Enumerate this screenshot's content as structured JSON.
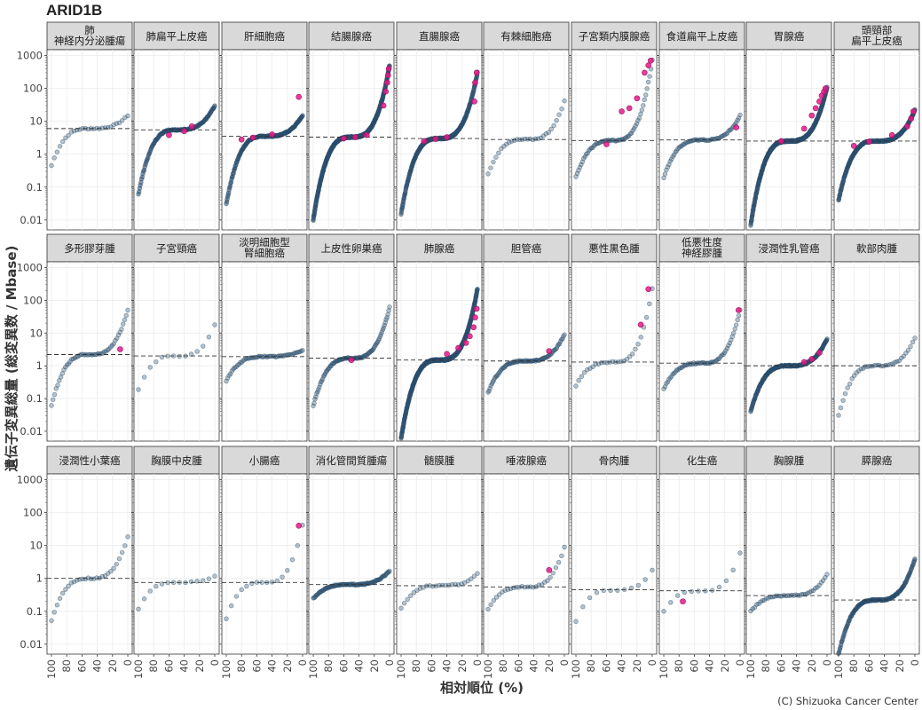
{
  "chart_data": {
    "type": "scatter",
    "title": "ARID1B",
    "xlabel": "相対順位 (%)",
    "ylabel": "遺伝子変異総量 (総変異数 / Mbase)",
    "credit": "(C) Shizuoka Cancer Center",
    "x_ticks": [
      "100",
      "80",
      "60",
      "40",
      "20",
      "0"
    ],
    "y_ticks": [
      "0.01",
      "0.1",
      "1",
      "10",
      "100",
      "1000"
    ],
    "xlim": [
      100,
      0
    ],
    "ylim": [
      0.005,
      1500
    ],
    "y_scale": "log",
    "dashed_line": "median",
    "colors": {
      "normal": "#2c4f6e",
      "mutated": "#e41a8a",
      "strip": "#d9d9d9"
    },
    "panels": [
      {
        "name": [
          "肺",
          "神経内分泌腫瘍"
        ],
        "n": 28,
        "median": 6.0,
        "lo": 0.45,
        "hi": 15,
        "mut": []
      },
      {
        "name": [
          "肺扁平上皮癌"
        ],
        "n": 120,
        "median": 5.5,
        "lo": 0.06,
        "hi": 30,
        "mut": [
          [
            60,
            3.8
          ],
          [
            40,
            5.0
          ],
          [
            30,
            7.0
          ]
        ]
      },
      {
        "name": [
          "肝細胞癌"
        ],
        "n": 160,
        "median": 3.5,
        "lo": 0.03,
        "hi": 15,
        "mut": [
          [
            80,
            2.8
          ],
          [
            65,
            3.2
          ],
          [
            40,
            4.0
          ],
          [
            5,
            55
          ]
        ]
      },
      {
        "name": [
          "結腸腺癌"
        ],
        "n": 400,
        "median": 3.3,
        "lo": 0.01,
        "hi": 500,
        "mut": [
          [
            60,
            3.0
          ],
          [
            45,
            3.3
          ],
          [
            30,
            3.8
          ],
          [
            8,
            30
          ],
          [
            5,
            80
          ],
          [
            3,
            150
          ],
          [
            2,
            250
          ],
          [
            1,
            400
          ]
        ]
      },
      {
        "name": [
          "直腸腺癌"
        ],
        "n": 250,
        "median": 3.0,
        "lo": 0.015,
        "hi": 300,
        "mut": [
          [
            70,
            2.5
          ],
          [
            55,
            2.9
          ],
          [
            40,
            3.3
          ],
          [
            4,
            40
          ],
          [
            3,
            150
          ],
          [
            1,
            300
          ]
        ]
      },
      {
        "name": [
          "有棘細胞癌"
        ],
        "n": 30,
        "median": 2.8,
        "lo": 0.25,
        "hi": 40,
        "mut": []
      },
      {
        "name": [
          "子宮類内膜腺癌"
        ],
        "n": 60,
        "median": 2.6,
        "lo": 0.2,
        "hi": 700,
        "mut": [
          [
            60,
            2.0
          ],
          [
            40,
            20
          ],
          [
            30,
            25
          ],
          [
            20,
            50
          ],
          [
            10,
            300
          ],
          [
            5,
            500
          ],
          [
            2,
            700
          ]
        ]
      },
      {
        "name": [
          "食道扁平上皮癌"
        ],
        "n": 60,
        "median": 2.7,
        "lo": 0.2,
        "hi": 15,
        "mut": [
          [
            5,
            6.5
          ]
        ]
      },
      {
        "name": [
          "胃腺癌"
        ],
        "n": 350,
        "median": 2.5,
        "lo": 0.007,
        "hi": 110,
        "mut": [
          [
            60,
            2.5
          ],
          [
            30,
            6
          ],
          [
            20,
            15
          ],
          [
            15,
            25
          ],
          [
            10,
            40
          ],
          [
            7,
            60
          ],
          [
            4,
            80
          ],
          [
            2,
            100
          ]
        ]
      },
      {
        "name": [
          "頭頸部",
          "扁平上皮癌"
        ],
        "n": 250,
        "median": 2.5,
        "lo": 0.04,
        "hi": 22,
        "mut": [
          [
            80,
            1.8
          ],
          [
            60,
            2.4
          ],
          [
            30,
            3.8
          ],
          [
            10,
            7
          ],
          [
            5,
            12
          ],
          [
            2,
            20
          ]
        ]
      },
      {
        "name": [
          "多形膠芽腫"
        ],
        "n": 50,
        "median": 2.2,
        "lo": 0.06,
        "hi": 50,
        "mut": [
          [
            10,
            3.2
          ]
        ]
      },
      {
        "name": [
          "子宮頸癌"
        ],
        "n": 14,
        "median": 2.0,
        "lo": 0.18,
        "hi": 18,
        "mut": []
      },
      {
        "name": [
          "淡明細胞型",
          "腎細胞癌"
        ],
        "n": 55,
        "median": 1.9,
        "lo": 0.35,
        "hi": 3,
        "mut": []
      },
      {
        "name": [
          "上皮性卵巣癌"
        ],
        "n": 90,
        "median": 1.7,
        "lo": 0.06,
        "hi": 60,
        "mut": [
          [
            50,
            1.5
          ]
        ]
      },
      {
        "name": [
          "肺腺癌"
        ],
        "n": 400,
        "median": 1.5,
        "lo": 0.006,
        "hi": 220,
        "mut": [
          [
            40,
            2.3
          ],
          [
            25,
            3.5
          ],
          [
            15,
            5
          ],
          [
            10,
            8
          ],
          [
            5,
            15
          ],
          [
            3,
            30
          ],
          [
            1,
            55
          ]
        ]
      },
      {
        "name": [
          "胆管癌"
        ],
        "n": 80,
        "median": 1.4,
        "lo": 0.15,
        "hi": 9,
        "mut": [
          [
            20,
            2.8
          ]
        ]
      },
      {
        "name": [
          "悪性黒色腫"
        ],
        "n": 28,
        "median": 1.3,
        "lo": 0.25,
        "hi": 220,
        "mut": [
          [
            15,
            18
          ],
          [
            5,
            220
          ]
        ]
      },
      {
        "name": [
          "低悪性度",
          "神経膠腫"
        ],
        "n": 60,
        "median": 1.2,
        "lo": 0.2,
        "hi": 50,
        "mut": [
          [
            2,
            50
          ]
        ]
      },
      {
        "name": [
          "浸潤性乳管癌"
        ],
        "n": 200,
        "median": 1.0,
        "lo": 0.04,
        "hi": 6.5,
        "mut": [
          [
            30,
            1.3
          ],
          [
            20,
            1.6
          ],
          [
            10,
            2.5
          ]
        ]
      },
      {
        "name": [
          "軟部肉腫"
        ],
        "n": 35,
        "median": 1.0,
        "lo": 0.03,
        "hi": 7,
        "mut": []
      },
      {
        "name": [
          "浸潤性小葉癌"
        ],
        "n": 28,
        "median": 1.0,
        "lo": 0.05,
        "hi": 18,
        "mut": []
      },
      {
        "name": [
          "胸膜中皮腫"
        ],
        "n": 14,
        "median": 0.75,
        "lo": 0.12,
        "hi": 1.2,
        "mut": []
      },
      {
        "name": [
          "小腸癌"
        ],
        "n": 16,
        "median": 0.75,
        "lo": 0.06,
        "hi": 40,
        "mut": [
          [
            5,
            40
          ]
        ]
      },
      {
        "name": [
          "消化管間質腫瘍"
        ],
        "n": 100,
        "median": 0.65,
        "lo": 0.25,
        "hi": 1.7,
        "mut": []
      },
      {
        "name": [
          "髄膜腫"
        ],
        "n": 25,
        "median": 0.6,
        "lo": 0.12,
        "hi": 1.4,
        "mut": []
      },
      {
        "name": [
          "唾液腺癌"
        ],
        "n": 28,
        "median": 0.55,
        "lo": 0.12,
        "hi": 9,
        "mut": [
          [
            20,
            1.8
          ]
        ]
      },
      {
        "name": [
          "骨肉腫"
        ],
        "n": 12,
        "median": 0.45,
        "lo": 0.05,
        "hi": 1.8,
        "mut": []
      },
      {
        "name": [
          "化生癌"
        ],
        "n": 12,
        "median": 0.42,
        "lo": 0.1,
        "hi": 6,
        "mut": [
          [
            75,
            0.2
          ]
        ]
      },
      {
        "name": [
          "胸腺腫"
        ],
        "n": 40,
        "median": 0.3,
        "lo": 0.1,
        "hi": 1.3,
        "mut": []
      },
      {
        "name": [
          "膵腺癌"
        ],
        "n": 130,
        "median": 0.22,
        "lo": 0.005,
        "hi": 4,
        "mut": []
      }
    ]
  }
}
